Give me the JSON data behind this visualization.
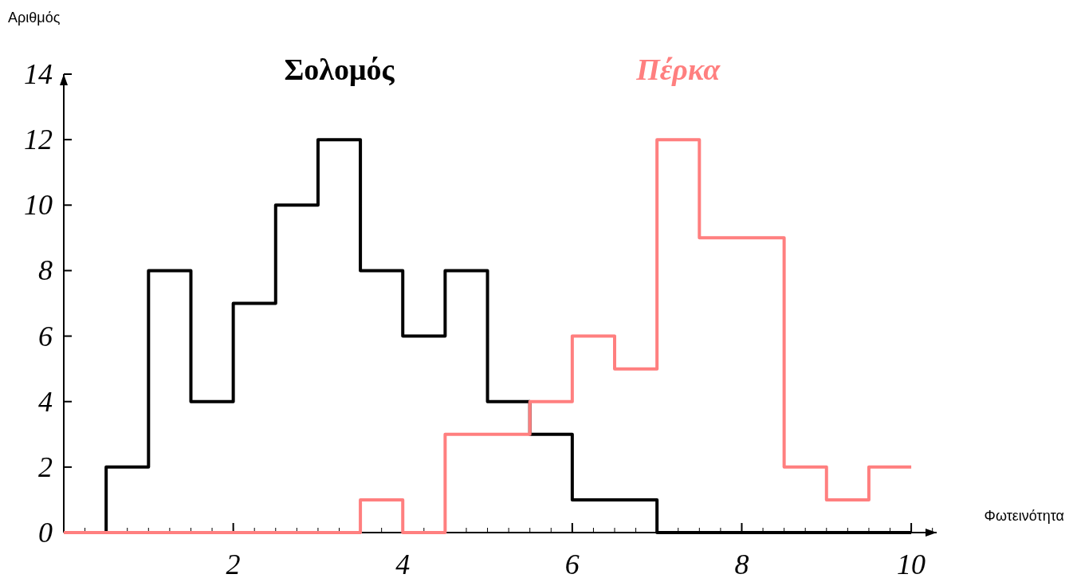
{
  "chart_data": {
    "type": "step",
    "xlabel": "Φωτεινότητα",
    "ylabel": "Αριθμός",
    "x": [
      0,
      0.5,
      1,
      1.5,
      2,
      2.5,
      3,
      3.5,
      4,
      4.5,
      5,
      5.5,
      6,
      6.5,
      7,
      7.5,
      8,
      8.5,
      9,
      9.5,
      10
    ],
    "series": [
      {
        "name": "Σολομός",
        "color": "#000000",
        "values": [
          0,
          2,
          8,
          4,
          7,
          10,
          12,
          8,
          6,
          8,
          4,
          3,
          1,
          1,
          0,
          0,
          0,
          0,
          0,
          0,
          0
        ]
      },
      {
        "name": "Πέρκα",
        "color": "#ff7f7f",
        "values": [
          0,
          0,
          0,
          0,
          0,
          0,
          0,
          1,
          0,
          3,
          3,
          4,
          6,
          5,
          12,
          9,
          9,
          2,
          1,
          2,
          2
        ]
      }
    ],
    "xlim": [
      0,
      10.3
    ],
    "ylim": [
      0,
      14
    ],
    "xticks": [
      2,
      4,
      6,
      8,
      10
    ],
    "yticks": [
      0,
      2,
      4,
      6,
      8,
      10,
      12,
      14
    ],
    "grid": false
  }
}
